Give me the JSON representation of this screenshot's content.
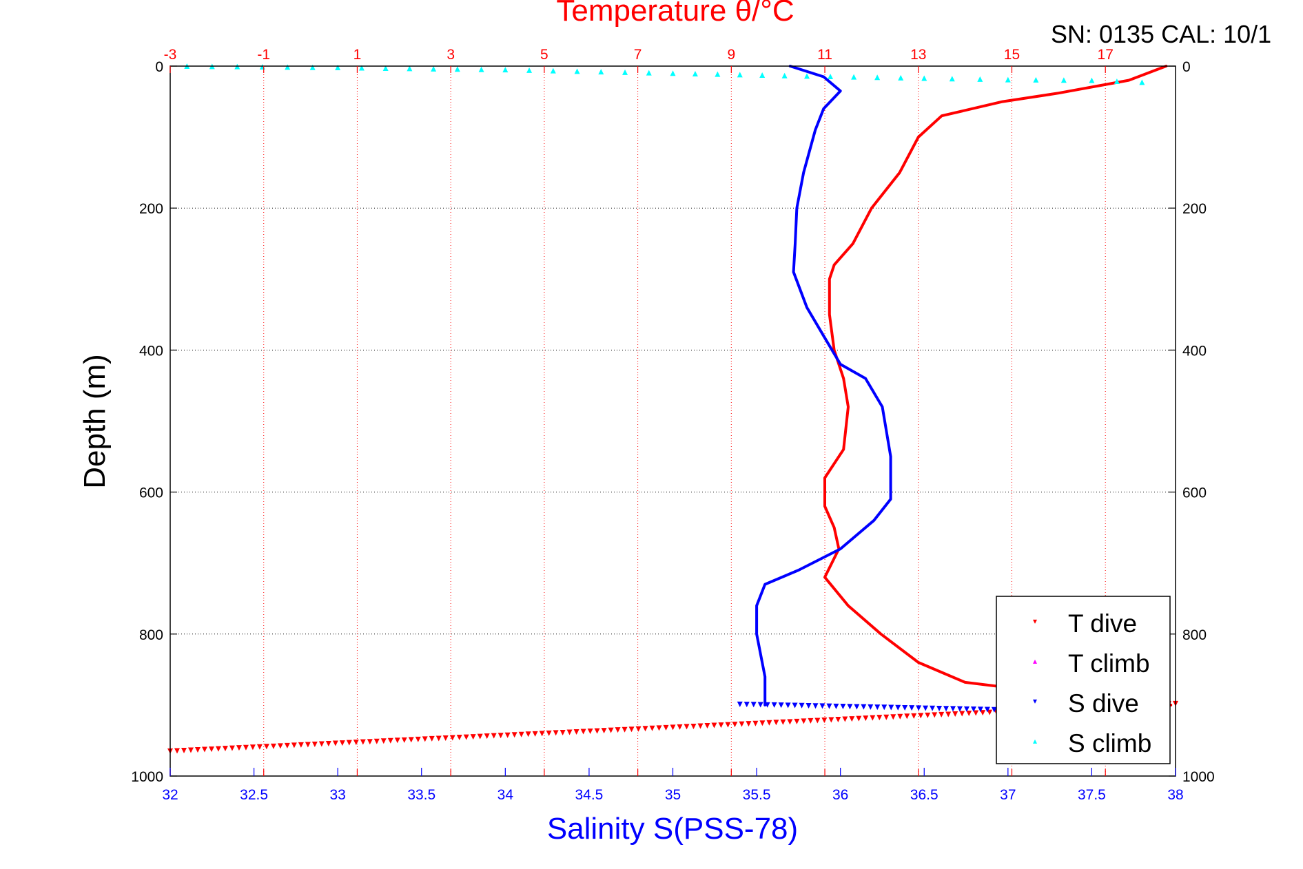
{
  "chart_data": {
    "type": "line",
    "title": "Temperature θ/°C",
    "serial_label": "SN: 0135  CAL: 10/1",
    "xlabel": "Salinity S(PSS-78)",
    "ylabel": "Depth (m)",
    "y_axis": {
      "range": [
        0,
        1000
      ],
      "reversed": true,
      "ticks": [
        0,
        200,
        400,
        600,
        800,
        1000
      ]
    },
    "x_salinity_axis": {
      "range": [
        32,
        38
      ],
      "ticks": [
        32,
        32.5,
        33,
        33.5,
        34,
        34.5,
        35,
        35.5,
        36,
        36.5,
        37,
        37.5,
        38
      ]
    },
    "x_temperature_axis": {
      "range": [
        -3,
        18.5
      ],
      "ticks": [
        -3,
        -1,
        1,
        3,
        5,
        7,
        9,
        11,
        13,
        15,
        17
      ]
    },
    "grid": true,
    "legend_position": "bottom-right",
    "colors": {
      "t_dive": "#ff0000",
      "t_climb": "#ff00ff",
      "s_dive": "#0000ff",
      "s_climb": "#00ffff"
    },
    "series": [
      {
        "name": "T dive",
        "axis": "temperature",
        "color": "#ff0000",
        "points": [
          [
            18.3,
            0
          ],
          [
            17.5,
            20
          ],
          [
            16.0,
            38
          ],
          [
            14.8,
            50
          ],
          [
            13.5,
            70
          ],
          [
            13.0,
            100
          ],
          [
            12.6,
            150
          ],
          [
            12.0,
            200
          ],
          [
            11.6,
            250
          ],
          [
            11.2,
            280
          ],
          [
            11.1,
            300
          ],
          [
            11.1,
            350
          ],
          [
            11.2,
            400
          ],
          [
            11.4,
            440
          ],
          [
            11.5,
            480
          ],
          [
            11.4,
            540
          ],
          [
            11.0,
            580
          ],
          [
            11.0,
            620
          ],
          [
            11.2,
            650
          ],
          [
            11.3,
            680
          ],
          [
            11.0,
            720
          ],
          [
            11.5,
            760
          ],
          [
            12.2,
            800
          ],
          [
            13.0,
            840
          ],
          [
            14.0,
            868
          ],
          [
            15.5,
            880
          ],
          [
            17.5,
            895
          ],
          [
            18.4,
            900
          ]
        ]
      },
      {
        "name": "T climb",
        "axis": "temperature",
        "color": "#ff00ff",
        "points": []
      },
      {
        "name": "S dive",
        "axis": "salinity",
        "color": "#0000ff",
        "points": [
          [
            35.7,
            0
          ],
          [
            35.9,
            15
          ],
          [
            36.0,
            35
          ],
          [
            35.9,
            60
          ],
          [
            35.85,
            90
          ],
          [
            35.78,
            150
          ],
          [
            35.74,
            200
          ],
          [
            35.73,
            250
          ],
          [
            35.72,
            290
          ],
          [
            35.8,
            340
          ],
          [
            35.9,
            380
          ],
          [
            36.0,
            420
          ],
          [
            36.15,
            440
          ],
          [
            36.25,
            480
          ],
          [
            36.3,
            550
          ],
          [
            36.3,
            610
          ],
          [
            36.2,
            640
          ],
          [
            36.0,
            680
          ],
          [
            35.75,
            710
          ],
          [
            35.55,
            730
          ],
          [
            35.5,
            760
          ],
          [
            35.5,
            800
          ],
          [
            35.55,
            860
          ],
          [
            35.55,
            900
          ]
        ]
      },
      {
        "name": "S climb",
        "axis": "salinity",
        "color": "#00ffff",
        "points": [
          [
            32.1,
            0
          ],
          [
            33.0,
            2
          ],
          [
            34.0,
            5
          ],
          [
            35.0,
            10
          ],
          [
            35.8,
            14
          ],
          [
            36.5,
            17
          ],
          [
            37.0,
            19
          ],
          [
            37.5,
            20
          ],
          [
            37.95,
            24
          ]
        ]
      }
    ],
    "artifact_lines": [
      {
        "axis": "temperature",
        "color": "#ff0000",
        "from": [
          -3,
          965
        ],
        "to": [
          18.5,
          898
        ]
      },
      {
        "axis": "salinity",
        "color": "#0000ff",
        "from": [
          35.4,
          899
        ],
        "to": [
          37.0,
          907
        ]
      }
    ]
  }
}
